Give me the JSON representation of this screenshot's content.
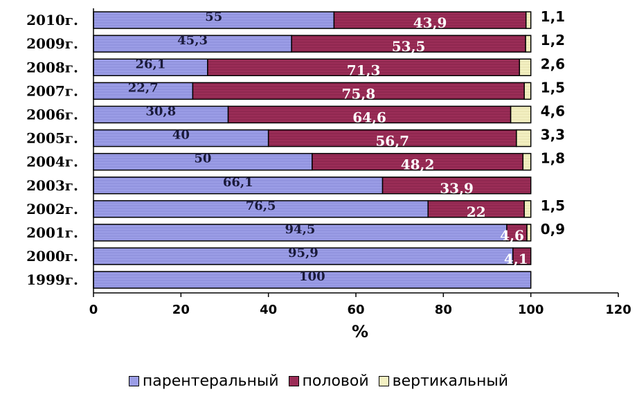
{
  "chart_data": {
    "type": "bar",
    "orientation": "horizontal",
    "stacked": true,
    "categories": [
      "2010г.",
      "2009г.",
      "2008г.",
      "2007г.",
      "2006г.",
      "2005г.",
      "2004г.",
      "2003г.",
      "2002г.",
      "2001г.",
      "2000г.",
      "1999г."
    ],
    "series": [
      {
        "name": "парентеральный",
        "color": "#9b9de6",
        "values": [
          55,
          45.3,
          26.1,
          22.7,
          30.8,
          40,
          50,
          66.1,
          76.5,
          94.5,
          95.9,
          100
        ]
      },
      {
        "name": "половой",
        "color": "#9b2d57",
        "values": [
          43.9,
          53.5,
          71.3,
          75.8,
          64.6,
          56.7,
          48.2,
          33.9,
          22,
          4.6,
          4.1,
          0
        ]
      },
      {
        "name": "вертикальный",
        "color": "#f3f0c2",
        "values": [
          1.1,
          1.2,
          2.6,
          1.5,
          4.6,
          3.3,
          1.8,
          0,
          1.5,
          0.9,
          0,
          0
        ]
      }
    ],
    "data_labels": [
      [
        "55",
        "43,9",
        "1,1"
      ],
      [
        "45,3",
        "53,5",
        "1,2"
      ],
      [
        "26,1",
        "71,3",
        "2,6"
      ],
      [
        "22,7",
        "75,8",
        "1,5"
      ],
      [
        "30,8",
        "64,6",
        "4,6"
      ],
      [
        "40",
        "56,7",
        "3,3"
      ],
      [
        "50",
        "48,2",
        "1,8"
      ],
      [
        "66,1",
        "33,9",
        ""
      ],
      [
        "76,5",
        "22",
        "1,5"
      ],
      [
        "94,5",
        "4,6",
        "0,9"
      ],
      [
        "95,9",
        "4,1",
        ""
      ],
      [
        "100",
        "",
        ""
      ]
    ],
    "xlim": [
      0,
      120
    ],
    "xticks": [
      "0",
      "20",
      "40",
      "60",
      "80",
      "100",
      "120"
    ],
    "xlabel": "%",
    "ylabel": "",
    "title": "",
    "grid": false,
    "legend_position": "bottom"
  }
}
